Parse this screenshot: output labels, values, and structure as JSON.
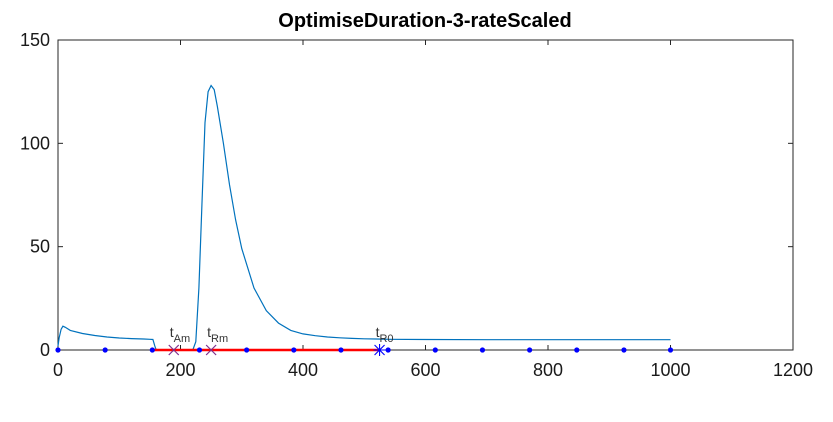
{
  "chart_data": {
    "type": "line",
    "title": "OptimiseDuration-3-rateScaled",
    "xlabel": "",
    "ylabel": "",
    "xlim": [
      0,
      1200
    ],
    "ylim": [
      0,
      150
    ],
    "xticks": [
      0,
      200,
      400,
      600,
      800,
      1000,
      1200
    ],
    "yticks": [
      0,
      50,
      100,
      150
    ],
    "grid": false,
    "legend": "none",
    "colors": {
      "curve": "#0072bd",
      "markers": "#0000ff",
      "segment": "#ff0000",
      "cross": "#7e2f8e",
      "star": "#0000ff"
    },
    "series": [
      {
        "type": "line",
        "x": [
          0,
          2,
          5,
          8,
          12,
          20,
          40,
          60,
          80,
          100,
          120,
          140,
          150,
          155,
          158,
          160,
          165,
          170,
          175,
          180,
          185,
          190,
          195,
          200,
          205,
          210,
          215,
          220,
          225,
          230,
          235,
          240,
          245,
          250,
          255,
          260,
          270,
          280,
          290,
          300,
          320,
          340,
          360,
          380,
          400,
          420,
          440,
          460,
          480,
          500,
          520,
          540,
          600,
          700,
          800,
          900,
          1000
        ],
        "y": [
          2,
          6,
          10,
          11.5,
          11,
          9.5,
          8,
          7,
          6.3,
          5.8,
          5.5,
          5.3,
          5.2,
          5.1,
          2,
          0.3,
          0,
          0,
          0,
          0,
          0,
          0,
          0,
          0,
          0,
          0,
          0,
          0,
          4,
          30,
          70,
          110,
          125,
          128,
          126,
          118,
          100,
          80,
          63,
          49,
          30,
          19,
          13,
          9.5,
          7.8,
          6.9,
          6.3,
          5.9,
          5.6,
          5.4,
          5.3,
          5.2,
          5.1,
          5,
          5,
          5,
          5
        ]
      },
      {
        "type": "markers",
        "x": [
          0,
          77,
          154,
          231,
          308,
          385,
          462,
          539,
          616,
          693,
          770,
          847,
          924,
          1000
        ],
        "y": [
          0,
          0,
          0,
          0,
          0,
          0,
          0,
          0,
          0,
          0,
          0,
          0,
          0,
          0
        ]
      },
      {
        "type": "segment",
        "x": [
          155,
          525
        ],
        "y": [
          0,
          0
        ]
      },
      {
        "type": "cross",
        "x": [
          189,
          250
        ],
        "y": [
          0,
          0
        ]
      },
      {
        "type": "star",
        "x": [
          525
        ],
        "y": [
          0
        ]
      }
    ],
    "annotations": [
      {
        "base": "t",
        "sub": "Am",
        "x": 189,
        "y": 0
      },
      {
        "base": "t",
        "sub": "Rm",
        "x": 250,
        "y": 0
      },
      {
        "base": "t",
        "sub": "R0",
        "x": 525,
        "y": 0
      }
    ]
  }
}
